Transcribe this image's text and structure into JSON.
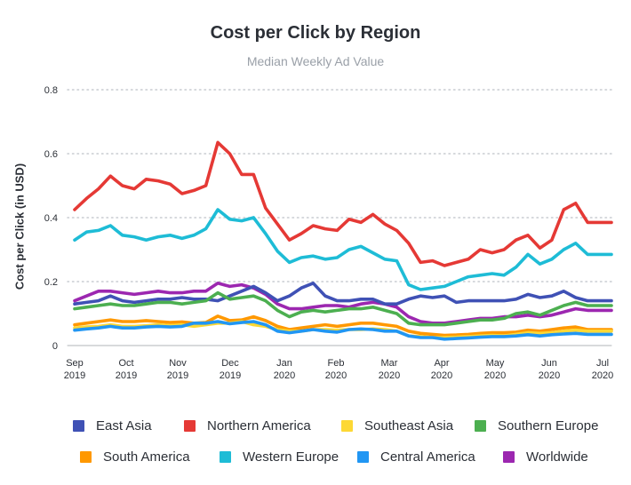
{
  "chart_data": {
    "type": "line",
    "title": "Cost per Click by Region",
    "subtitle": "Median Weekly Ad Value",
    "ylabel": "Cost per Click (in USD)",
    "ylim": [
      0,
      0.8
    ],
    "yticks": [
      0,
      0.2,
      0.4,
      0.6,
      0.8
    ],
    "ytick_labels": [
      "0",
      "0.2",
      "0.4",
      "0.6",
      "0.8"
    ],
    "xticks": [
      {
        "line1": "Sep",
        "line2": "2019"
      },
      {
        "line1": "Oct",
        "line2": "2019"
      },
      {
        "line1": "Nov",
        "line2": "2019"
      },
      {
        "line1": "Dec",
        "line2": "2019"
      },
      {
        "line1": "Jan",
        "line2": "2020"
      },
      {
        "line1": "Feb",
        "line2": "2020"
      },
      {
        "line1": "Mar",
        "line2": "2020"
      },
      {
        "line1": "Apr",
        "line2": "2020"
      },
      {
        "line1": "May",
        "line2": "2020"
      },
      {
        "line1": "Jun",
        "line2": "2020"
      },
      {
        "line1": "Jul",
        "line2": "2020"
      }
    ],
    "x_weeks": [
      "2019-09-01",
      "2019-09-08",
      "2019-09-15",
      "2019-09-22",
      "2019-09-29",
      "2019-10-06",
      "2019-10-13",
      "2019-10-20",
      "2019-10-27",
      "2019-11-03",
      "2019-11-10",
      "2019-11-17",
      "2019-11-24",
      "2019-12-01",
      "2019-12-08",
      "2019-12-15",
      "2019-12-22",
      "2019-12-29",
      "2020-01-05",
      "2020-01-12",
      "2020-01-19",
      "2020-01-26",
      "2020-02-02",
      "2020-02-09",
      "2020-02-16",
      "2020-02-23",
      "2020-03-01",
      "2020-03-08",
      "2020-03-15",
      "2020-03-22",
      "2020-03-29",
      "2020-04-05",
      "2020-04-12",
      "2020-04-19",
      "2020-04-26",
      "2020-05-03",
      "2020-05-10",
      "2020-05-17",
      "2020-05-24",
      "2020-05-31",
      "2020-06-07",
      "2020-06-14",
      "2020-06-21",
      "2020-06-28",
      "2020-07-05",
      "2020-07-12"
    ],
    "grid": true,
    "legend_position": "bottom",
    "series": [
      {
        "name": "Northern America",
        "color": "#e53935",
        "values": [
          0.425,
          0.46,
          0.49,
          0.53,
          0.5,
          0.49,
          0.52,
          0.515,
          0.505,
          0.475,
          0.485,
          0.5,
          0.635,
          0.6,
          0.535,
          0.535,
          0.43,
          0.38,
          0.33,
          0.35,
          0.375,
          0.365,
          0.36,
          0.395,
          0.385,
          0.41,
          0.38,
          0.36,
          0.32,
          0.26,
          0.265,
          0.25,
          0.26,
          0.27,
          0.3,
          0.29,
          0.3,
          0.33,
          0.345,
          0.305,
          0.33,
          0.425,
          0.445,
          0.385,
          0.385,
          0.385
        ]
      },
      {
        "name": "Western Europe",
        "color": "#1ebcd6",
        "values": [
          0.33,
          0.355,
          0.36,
          0.375,
          0.345,
          0.34,
          0.33,
          0.34,
          0.345,
          0.335,
          0.345,
          0.365,
          0.425,
          0.395,
          0.39,
          0.4,
          0.35,
          0.295,
          0.26,
          0.275,
          0.28,
          0.27,
          0.275,
          0.3,
          0.31,
          0.29,
          0.27,
          0.265,
          0.19,
          0.175,
          0.18,
          0.185,
          0.2,
          0.215,
          0.22,
          0.225,
          0.22,
          0.245,
          0.285,
          0.255,
          0.27,
          0.3,
          0.32,
          0.285,
          0.285,
          0.285
        ]
      },
      {
        "name": "Worldwide",
        "color": "#9c27b0",
        "values": [
          0.14,
          0.155,
          0.17,
          0.17,
          0.165,
          0.16,
          0.165,
          0.17,
          0.165,
          0.165,
          0.17,
          0.17,
          0.195,
          0.185,
          0.19,
          0.18,
          0.16,
          0.13,
          0.115,
          0.115,
          0.12,
          0.125,
          0.125,
          0.12,
          0.13,
          0.135,
          0.13,
          0.12,
          0.09,
          0.075,
          0.07,
          0.07,
          0.075,
          0.08,
          0.085,
          0.085,
          0.09,
          0.09,
          0.095,
          0.09,
          0.095,
          0.105,
          0.115,
          0.11,
          0.11,
          0.11
        ]
      },
      {
        "name": "East Asia",
        "color": "#3f51b5",
        "values": [
          0.13,
          0.135,
          0.14,
          0.155,
          0.14,
          0.135,
          0.14,
          0.145,
          0.145,
          0.15,
          0.145,
          0.145,
          0.14,
          0.155,
          0.17,
          0.185,
          0.165,
          0.14,
          0.155,
          0.18,
          0.195,
          0.155,
          0.14,
          0.14,
          0.145,
          0.145,
          0.13,
          0.13,
          0.145,
          0.155,
          0.15,
          0.155,
          0.135,
          0.14,
          0.14,
          0.14,
          0.14,
          0.145,
          0.16,
          0.15,
          0.155,
          0.17,
          0.15,
          0.14,
          0.14,
          0.14
        ]
      },
      {
        "name": "Southern Europe",
        "color": "#4caf50",
        "values": [
          0.115,
          0.12,
          0.125,
          0.13,
          0.125,
          0.125,
          0.13,
          0.135,
          0.135,
          0.13,
          0.135,
          0.14,
          0.165,
          0.145,
          0.15,
          0.155,
          0.14,
          0.11,
          0.09,
          0.105,
          0.11,
          0.105,
          0.11,
          0.115,
          0.115,
          0.12,
          0.11,
          0.1,
          0.07,
          0.065,
          0.065,
          0.065,
          0.07,
          0.075,
          0.08,
          0.08,
          0.085,
          0.1,
          0.105,
          0.095,
          0.11,
          0.125,
          0.135,
          0.125,
          0.125,
          0.125
        ]
      },
      {
        "name": "South America",
        "color": "#ff9800",
        "values": [
          0.065,
          0.07,
          0.075,
          0.08,
          0.075,
          0.075,
          0.078,
          0.075,
          0.072,
          0.074,
          0.07,
          0.072,
          0.092,
          0.078,
          0.08,
          0.09,
          0.078,
          0.06,
          0.05,
          0.055,
          0.06,
          0.065,
          0.06,
          0.065,
          0.07,
          0.07,
          0.065,
          0.06,
          0.045,
          0.038,
          0.035,
          0.032,
          0.033,
          0.035,
          0.038,
          0.04,
          0.04,
          0.042,
          0.048,
          0.045,
          0.05,
          0.055,
          0.058,
          0.05,
          0.05,
          0.05
        ]
      },
      {
        "name": "Southeast Asia",
        "color": "#fdd835",
        "values": [
          0.055,
          0.058,
          0.06,
          0.065,
          0.06,
          0.06,
          0.062,
          0.065,
          0.062,
          0.065,
          0.06,
          0.065,
          0.07,
          0.07,
          0.075,
          0.065,
          0.06,
          0.05,
          0.045,
          0.045,
          0.05,
          0.05,
          0.048,
          0.05,
          0.05,
          0.052,
          0.05,
          0.045,
          0.03,
          0.028,
          0.025,
          0.025,
          0.026,
          0.028,
          0.03,
          0.032,
          0.03,
          0.035,
          0.04,
          0.038,
          0.04,
          0.045,
          0.048,
          0.045,
          0.045,
          0.045
        ]
      },
      {
        "name": "Central America",
        "color": "#2196f3",
        "values": [
          0.048,
          0.052,
          0.055,
          0.06,
          0.055,
          0.055,
          0.058,
          0.06,
          0.058,
          0.06,
          0.07,
          0.07,
          0.075,
          0.068,
          0.072,
          0.075,
          0.065,
          0.045,
          0.04,
          0.045,
          0.05,
          0.045,
          0.042,
          0.05,
          0.052,
          0.05,
          0.045,
          0.045,
          0.03,
          0.025,
          0.025,
          0.02,
          0.022,
          0.024,
          0.026,
          0.028,
          0.028,
          0.03,
          0.034,
          0.03,
          0.034,
          0.036,
          0.038,
          0.035,
          0.035,
          0.035
        ]
      }
    ],
    "legend": [
      {
        "name": "East Asia",
        "color": "#3f51b5"
      },
      {
        "name": "Northern America",
        "color": "#e53935"
      },
      {
        "name": "Southeast Asia",
        "color": "#fdd835"
      },
      {
        "name": "Southern Europe",
        "color": "#4caf50"
      },
      {
        "name": "South America",
        "color": "#ff9800"
      },
      {
        "name": "Western Europe",
        "color": "#1ebcd6"
      },
      {
        "name": "Central America",
        "color": "#2196f3"
      },
      {
        "name": "Worldwide",
        "color": "#9c27b0"
      }
    ]
  }
}
